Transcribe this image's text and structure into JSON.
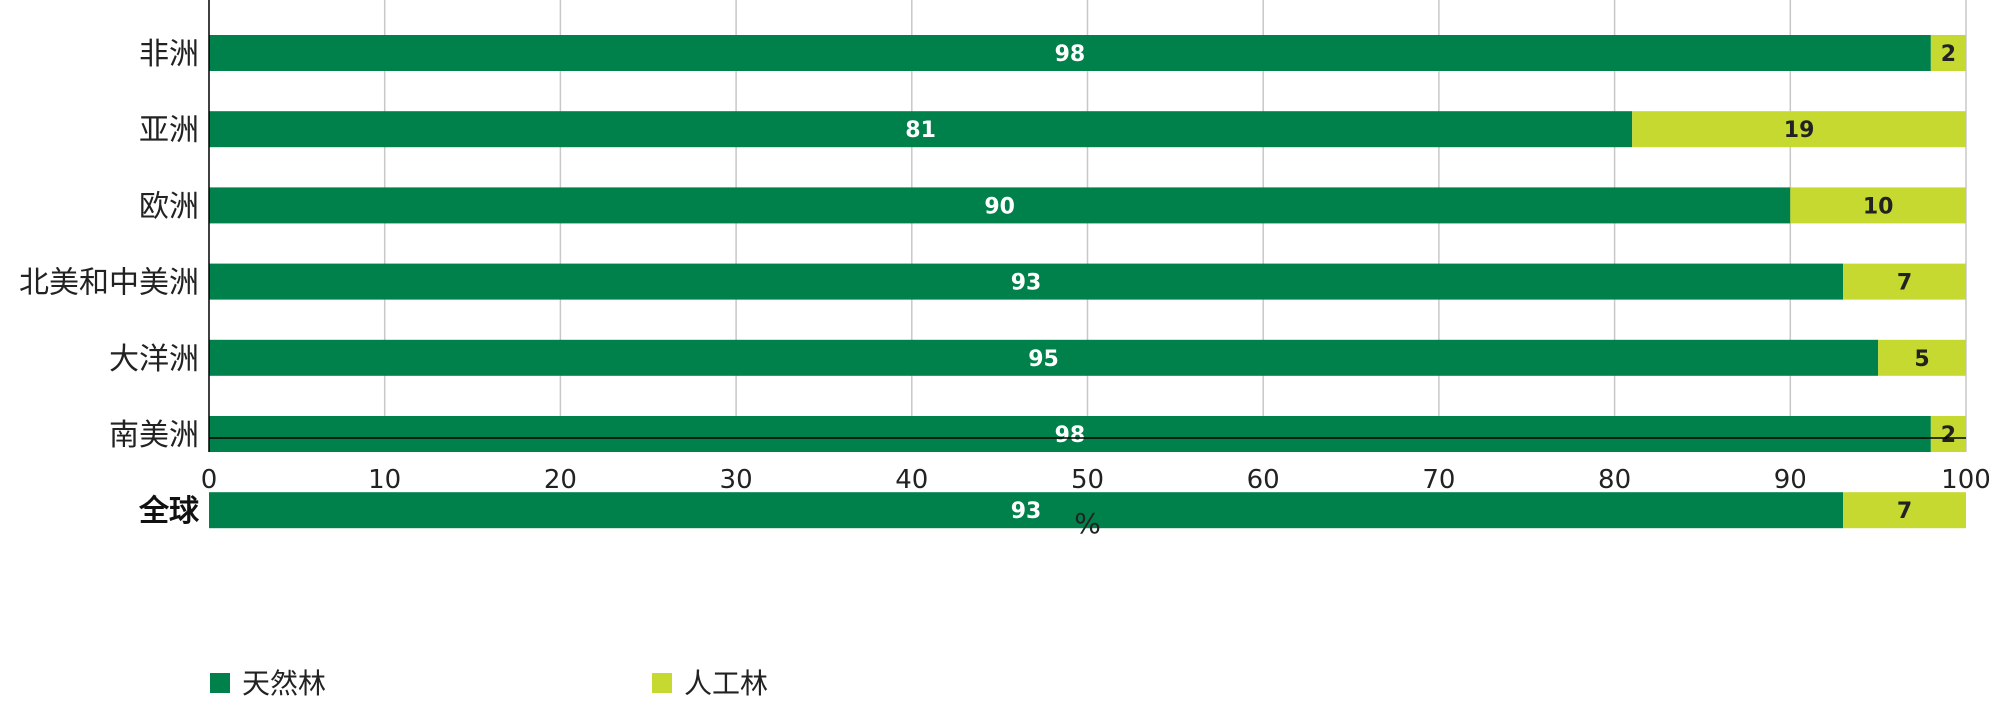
{
  "colors": {
    "natural": "#00804a",
    "planted": "#c5d930",
    "natural_label": "#ffffff",
    "planted_label": "#222222"
  },
  "chart_data": {
    "type": "bar",
    "orientation": "horizontal",
    "stacked": true,
    "categories": [
      "非洲",
      "亚洲",
      "欧洲",
      "北美和中美洲",
      "大洋洲",
      "南美洲",
      "全球"
    ],
    "series": [
      {
        "name": "天然林",
        "values": [
          98,
          81,
          90,
          93,
          95,
          98,
          93
        ]
      },
      {
        "name": "人工林",
        "values": [
          2,
          19,
          10,
          7,
          5,
          2,
          7
        ]
      }
    ],
    "xlabel": "%",
    "ylabel": "",
    "xlim": [
      0,
      100
    ],
    "xticks": [
      0,
      10,
      20,
      30,
      40,
      50,
      60,
      70,
      80,
      90,
      100
    ],
    "grid": "vertical",
    "legend": "bottom-left"
  }
}
